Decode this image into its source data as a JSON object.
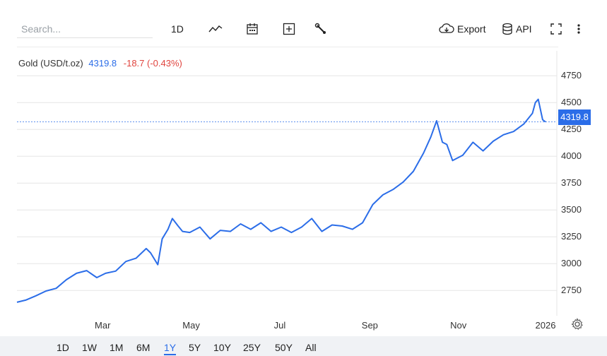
{
  "toolbar": {
    "search_placeholder": "Search...",
    "interval_label": "1D",
    "export_label": "Export",
    "api_label": "API"
  },
  "legend": {
    "name": "Gold (USD/t.oz)",
    "value": "4319.8",
    "change": "-18.7 (-0.43%)"
  },
  "price_tag": "4319.8",
  "ranges": {
    "items": [
      "1D",
      "1W",
      "1M",
      "6M",
      "1Y",
      "5Y",
      "10Y",
      "25Y",
      "50Y",
      "All"
    ],
    "active": "1Y"
  },
  "colors": {
    "line": "#2b6de8",
    "change_negative": "#e0443e",
    "grid": "#e6e6e6"
  },
  "chart_data": {
    "type": "line",
    "title": "Gold (USD/t.oz)",
    "xlabel": "",
    "ylabel": "",
    "x_tick_labels": [
      "Mar",
      "May",
      "Jul",
      "Sep",
      "Nov",
      "2026"
    ],
    "y_tick_labels": [
      "2750",
      "3000",
      "3250",
      "3500",
      "3750",
      "4000",
      "4250",
      "4500",
      "4750"
    ],
    "ylim": [
      2600,
      4850
    ],
    "last_value": 4319.8,
    "grid": "horizontal",
    "series": [
      {
        "x": [
          "2025-01-01",
          "2025-01-07",
          "2025-01-14",
          "2025-01-21",
          "2025-01-28",
          "2025-02-04",
          "2025-02-11",
          "2025-02-18",
          "2025-02-25",
          "2025-03-03",
          "2025-03-10",
          "2025-03-17",
          "2025-03-24",
          "2025-03-31",
          "2025-04-03",
          "2025-04-08",
          "2025-04-11",
          "2025-04-15",
          "2025-04-18",
          "2025-04-22",
          "2025-04-25",
          "2025-04-30",
          "2025-05-07",
          "2025-05-14",
          "2025-05-21",
          "2025-05-28",
          "2025-06-04",
          "2025-06-11",
          "2025-06-18",
          "2025-06-25",
          "2025-07-02",
          "2025-07-09",
          "2025-07-16",
          "2025-07-23",
          "2025-07-30",
          "2025-08-06",
          "2025-08-13",
          "2025-08-20",
          "2025-08-27",
          "2025-09-03",
          "2025-09-10",
          "2025-09-17",
          "2025-09-24",
          "2025-10-01",
          "2025-10-08",
          "2025-10-13",
          "2025-10-17",
          "2025-10-21",
          "2025-10-24",
          "2025-10-28",
          "2025-11-04",
          "2025-11-11",
          "2025-11-18",
          "2025-11-25",
          "2025-12-02",
          "2025-12-09",
          "2025-12-16",
          "2025-12-22",
          "2025-12-24",
          "2025-12-26",
          "2025-12-29",
          "2025-12-31"
        ],
        "values": [
          2640,
          2660,
          2700,
          2745,
          2770,
          2850,
          2910,
          2935,
          2870,
          2910,
          2930,
          3020,
          3050,
          3140,
          3100,
          2990,
          3230,
          3320,
          3420,
          3350,
          3300,
          3290,
          3340,
          3230,
          3310,
          3300,
          3370,
          3320,
          3380,
          3300,
          3340,
          3290,
          3340,
          3420,
          3300,
          3360,
          3350,
          3320,
          3380,
          3550,
          3640,
          3690,
          3760,
          3860,
          4030,
          4180,
          4330,
          4130,
          4110,
          3960,
          4010,
          4130,
          4050,
          4140,
          4200,
          4230,
          4300,
          4400,
          4500,
          4530,
          4340,
          4320
        ]
      }
    ]
  }
}
